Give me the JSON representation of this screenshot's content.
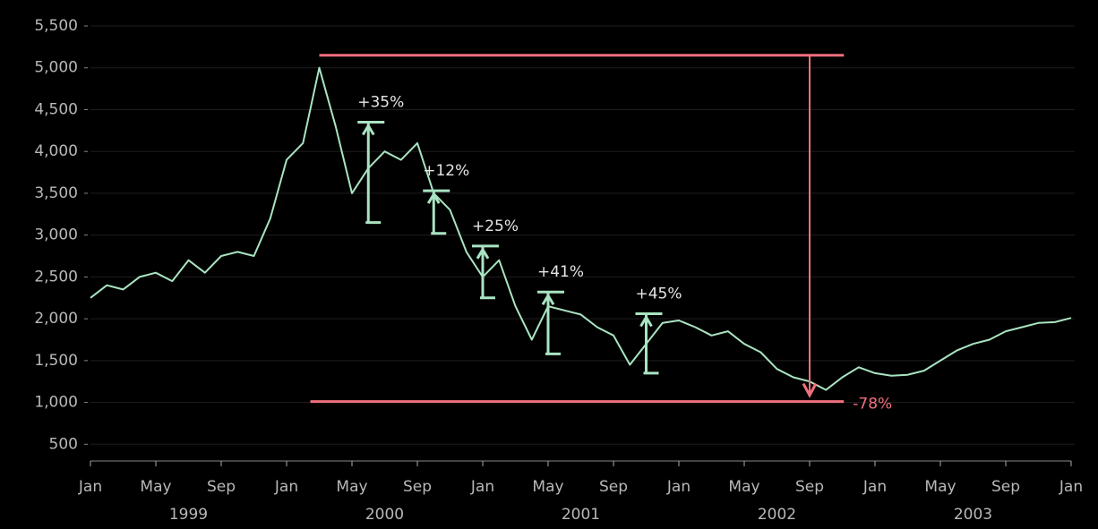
{
  "chart_data": {
    "type": "line",
    "x": [
      "1999-01",
      "1999-02",
      "1999-03",
      "1999-04",
      "1999-05",
      "1999-06",
      "1999-07",
      "1999-08",
      "1999-09",
      "1999-10",
      "1999-11",
      "1999-12",
      "2000-01",
      "2000-02",
      "2000-03",
      "2000-04",
      "2000-05",
      "2000-06",
      "2000-07",
      "2000-08",
      "2000-09",
      "2000-10",
      "2000-11",
      "2000-12",
      "2001-01",
      "2001-02",
      "2001-03",
      "2001-04",
      "2001-05",
      "2001-06",
      "2001-07",
      "2001-08",
      "2001-09",
      "2001-10",
      "2001-11",
      "2001-12",
      "2002-01",
      "2002-02",
      "2002-03",
      "2002-04",
      "2002-05",
      "2002-06",
      "2002-07",
      "2002-08",
      "2002-09",
      "2002-10",
      "2002-11",
      "2002-12",
      "2003-01",
      "2003-02",
      "2003-03",
      "2003-04",
      "2003-05",
      "2003-06",
      "2003-07",
      "2003-08",
      "2003-09",
      "2003-10",
      "2003-11",
      "2003-12",
      "2004-01"
    ],
    "series": [
      {
        "color": "#a9e4c2",
        "values": [
          2250,
          2400,
          2350,
          2500,
          2550,
          2450,
          2700,
          2550,
          2750,
          2800,
          2750,
          3200,
          3900,
          4100,
          5000,
          4300,
          3500,
          3800,
          4000,
          3900,
          4100,
          3500,
          3300,
          2800,
          2500,
          2700,
          2150,
          1750,
          2150,
          2100,
          2050,
          1900,
          1800,
          1450,
          1700,
          1950,
          1980,
          1900,
          1800,
          1850,
          1700,
          1600,
          1400,
          1300,
          1250,
          1150,
          1300,
          1420,
          1350,
          1320,
          1330,
          1380,
          1500,
          1620,
          1700,
          1750,
          1850,
          1900,
          1950,
          1960,
          2010
        ]
      }
    ],
    "xlim": [
      "1999-01",
      "2004-01"
    ],
    "xticks": [
      {
        "value": "1999-01",
        "label": "Jan"
      },
      {
        "value": "1999-05",
        "label": "May"
      },
      {
        "value": "1999-09",
        "label": "Sep"
      },
      {
        "value": "2000-01",
        "label": "Jan"
      },
      {
        "value": "2000-05",
        "label": "May"
      },
      {
        "value": "2000-09",
        "label": "Sep"
      },
      {
        "value": "2001-01",
        "label": "Jan"
      },
      {
        "value": "2001-05",
        "label": "May"
      },
      {
        "value": "2001-09",
        "label": "Sep"
      },
      {
        "value": "2002-01",
        "label": "Jan"
      },
      {
        "value": "2002-05",
        "label": "May"
      },
      {
        "value": "2002-09",
        "label": "Sep"
      },
      {
        "value": "2003-01",
        "label": "Jan"
      },
      {
        "value": "2003-05",
        "label": "May"
      },
      {
        "value": "2003-09",
        "label": "Sep"
      },
      {
        "value": "2004-01",
        "label": "Jan"
      }
    ],
    "years": [
      {
        "value": "1999-07",
        "label": "1999"
      },
      {
        "value": "2000-07",
        "label": "2000"
      },
      {
        "value": "2001-07",
        "label": "2001"
      },
      {
        "value": "2002-07",
        "label": "2002"
      },
      {
        "value": "2003-07",
        "label": "2003"
      }
    ],
    "ylim": [
      300,
      5650
    ],
    "yticks": [
      500,
      {
        "value": 1000,
        "label": "1,000"
      },
      {
        "value": 1500,
        "label": "1,500"
      },
      {
        "value": 2000,
        "label": "2,000"
      },
      {
        "value": 2500,
        "label": "2,500"
      },
      {
        "value": 3000,
        "label": "3,000"
      },
      {
        "value": 3500,
        "label": "3,500"
      },
      {
        "value": 4000,
        "label": "4,000"
      },
      {
        "value": 4500,
        "label": "4,500"
      },
      {
        "value": 5000,
        "label": "5,000"
      },
      {
        "value": 5500,
        "label": "5,500"
      }
    ],
    "grid": true,
    "rallies": {
      "color": "#a9e4c2",
      "items": [
        {
          "x": "2000-06",
          "low": 3150,
          "high": 4350,
          "label": "+35%"
        },
        {
          "x": "2000-10",
          "low": 3020,
          "high": 3530,
          "label": "+12%"
        },
        {
          "x": "2001-01",
          "low": 2250,
          "high": 2870,
          "label": "+25%"
        },
        {
          "x": "2001-05",
          "low": 1580,
          "high": 2320,
          "label": "+41%"
        },
        {
          "x": "2001-11",
          "low": 1350,
          "high": 2060,
          "label": "+45%"
        }
      ]
    },
    "drawdown": {
      "color": "#f0707e",
      "from": "2000-03",
      "to": "2002-10",
      "x": "2002-09",
      "high": 5150,
      "low": 1010,
      "label": "-78%"
    }
  }
}
